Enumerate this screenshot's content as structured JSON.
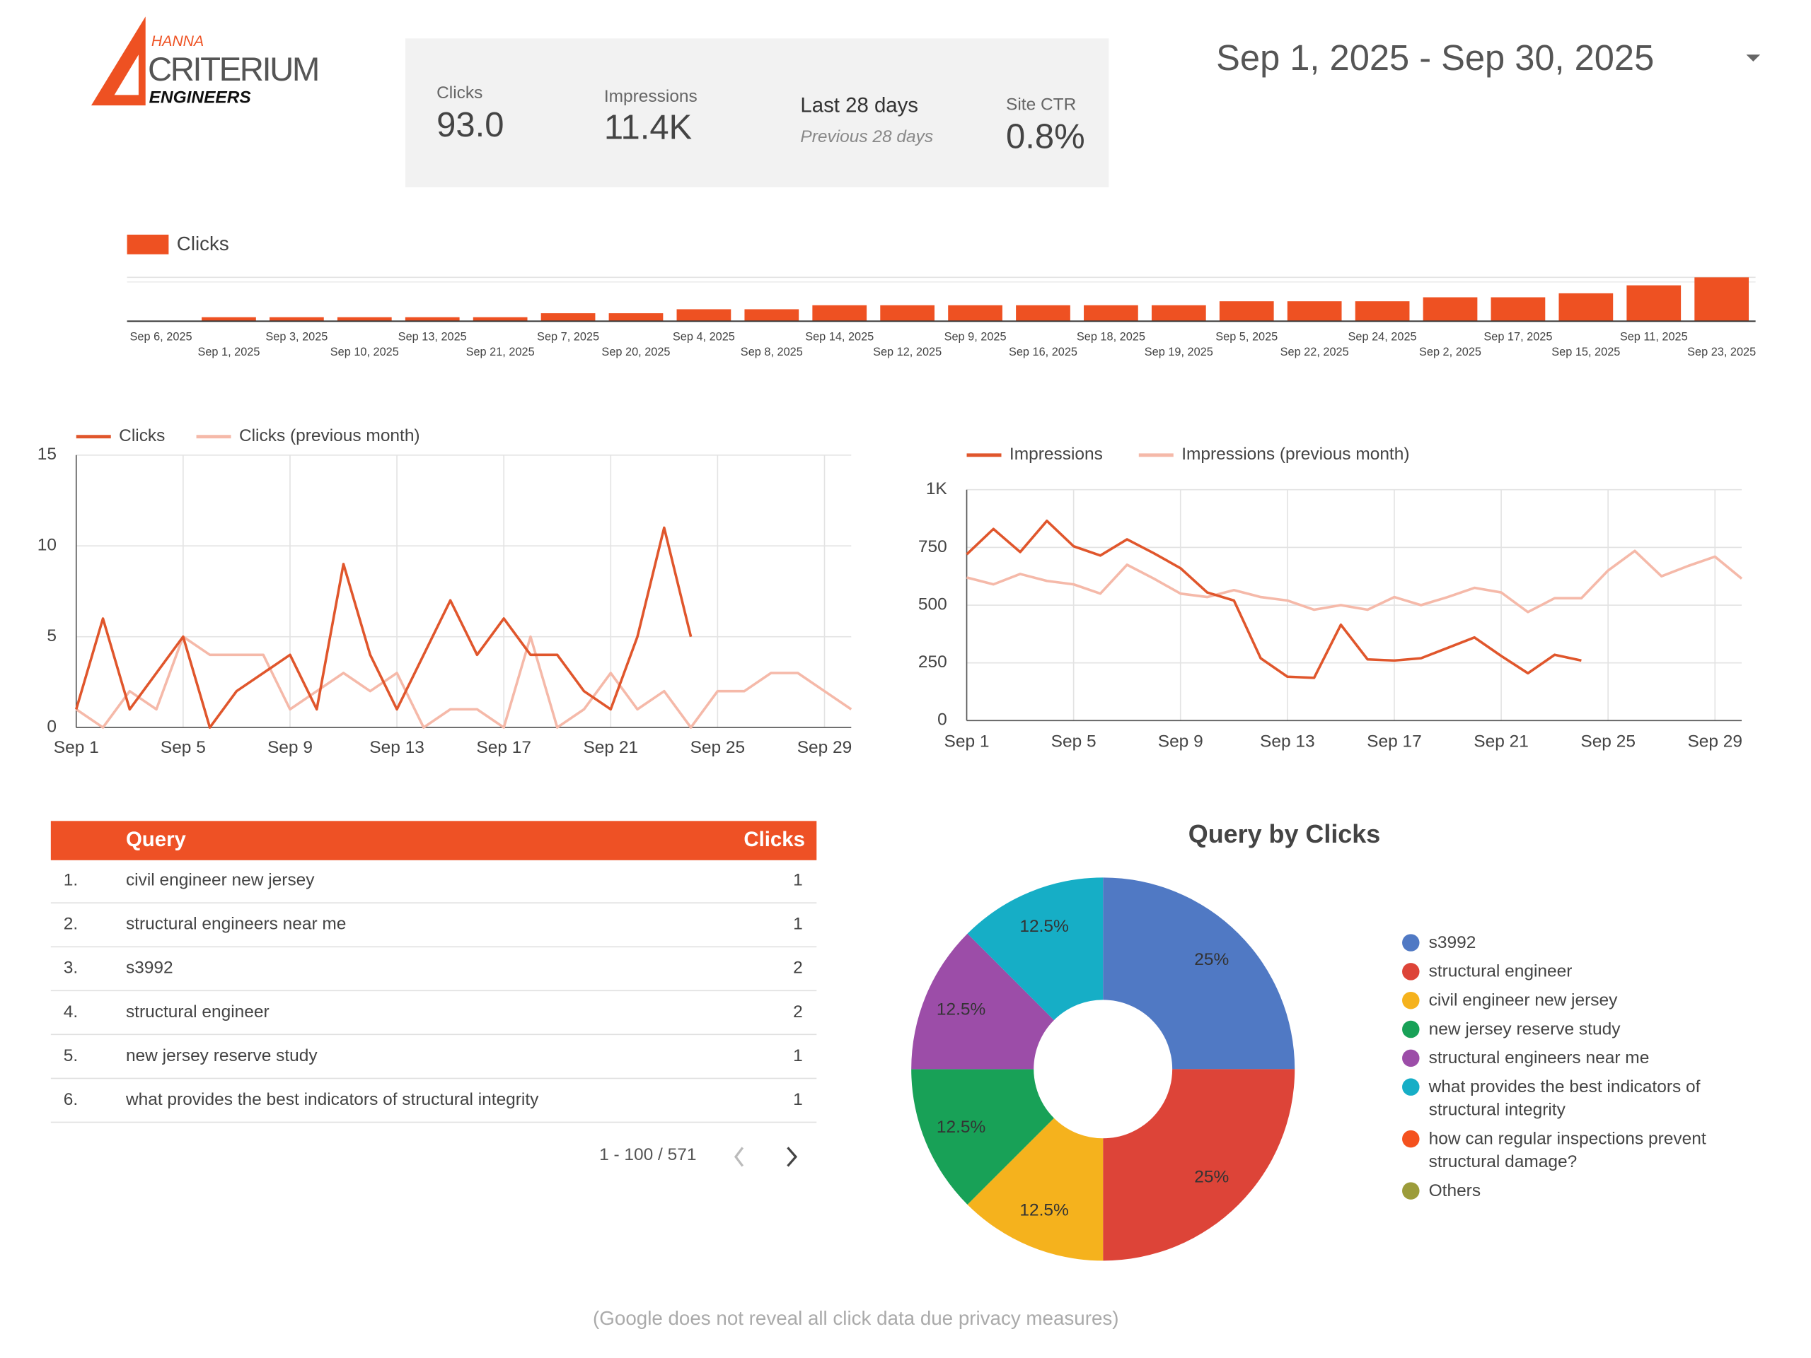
{
  "header": {
    "logo": {
      "top": "HANNA",
      "main": "CRITERIUM",
      "bottom": "ENGINEERS"
    },
    "date_range": "Sep 1, 2025 - Sep 30, 2025"
  },
  "scorecard": {
    "clicks": {
      "label": "Clicks",
      "value": "93.0"
    },
    "impressions": {
      "label": "Impressions",
      "value": "11.4K"
    },
    "period": "Last 28 days",
    "comparison": "Previous 28 days",
    "ctr": {
      "label": "Site CTR",
      "value": "0.8%"
    }
  },
  "chart_data": [
    {
      "type": "bar",
      "categories": [
        "Sep 6, 2025",
        "Sep 1, 2025",
        "Sep 3, 2025",
        "Sep 10, 2025",
        "Sep 13, 2025",
        "Sep 21, 2025",
        "Sep 7, 2025",
        "Sep 20, 2025",
        "Sep 4, 2025",
        "Sep 8, 2025",
        "Sep 14, 2025",
        "Sep 12, 2025",
        "Sep 9, 2025",
        "Sep 16, 2025",
        "Sep 18, 2025",
        "Sep 19, 2025",
        "Sep 5, 2025",
        "Sep 22, 2025",
        "Sep 24, 2025",
        "Sep 2, 2025",
        "Sep 17, 2025",
        "Sep 15, 2025",
        "Sep 11, 2025",
        "Sep 23, 2025"
      ],
      "series": [
        {
          "name": "Clicks",
          "color": "#ee5122",
          "values": [
            0,
            1,
            1,
            1,
            1,
            1,
            2,
            2,
            3,
            3,
            4,
            4,
            4,
            4,
            4,
            4,
            5,
            5,
            5,
            6,
            6,
            7,
            9,
            11
          ]
        }
      ]
    },
    {
      "type": "line",
      "categories": [
        "Sep 1",
        null,
        null,
        null,
        "Sep 5",
        null,
        null,
        null,
        "Sep 9",
        null,
        null,
        null,
        "Sep 13",
        null,
        null,
        null,
        "Sep 17",
        null,
        null,
        null,
        "Sep 21",
        null,
        null,
        null,
        "Sep 25",
        null,
        null,
        null,
        "Sep 29",
        null
      ],
      "series": [
        {
          "name": "Clicks",
          "color": "#e0562c",
          "values": [
            1,
            6,
            1,
            3,
            5,
            0,
            2,
            3,
            4,
            1,
            9,
            4,
            1,
            4,
            7,
            4,
            6,
            4,
            4,
            2,
            1,
            5,
            11,
            5,
            null,
            null,
            null,
            null,
            null,
            null
          ]
        },
        {
          "name": "Clicks (previous month)",
          "color": "#f5b9a9",
          "values": [
            1,
            0,
            2,
            1,
            5,
            4,
            4,
            4,
            1,
            2,
            3,
            2,
            3,
            0,
            1,
            1,
            0,
            5,
            0,
            1,
            3,
            1,
            2,
            0,
            2,
            2,
            3,
            3,
            2,
            1
          ]
        }
      ],
      "ylim": [
        0,
        15
      ],
      "yticks": [
        0,
        5,
        10,
        15
      ],
      "grid": true
    },
    {
      "type": "line",
      "categories": [
        "Sep 1",
        null,
        null,
        null,
        "Sep 5",
        null,
        null,
        null,
        "Sep 9",
        null,
        null,
        null,
        "Sep 13",
        null,
        null,
        null,
        "Sep 17",
        null,
        null,
        null,
        "Sep 21",
        null,
        null,
        null,
        "Sep 25",
        null,
        null,
        null,
        "Sep 29",
        null
      ],
      "series": [
        {
          "name": "Impressions",
          "color": "#e0562c",
          "values": [
            720,
            830,
            730,
            865,
            755,
            715,
            785,
            725,
            660,
            555,
            520,
            270,
            190,
            185,
            415,
            265,
            260,
            270,
            315,
            360,
            280,
            205,
            285,
            260,
            null,
            null,
            null,
            null,
            null,
            null
          ]
        },
        {
          "name": "Impressions (previous month)",
          "color": "#f5b9a9",
          "values": [
            620,
            590,
            635,
            605,
            590,
            550,
            675,
            615,
            550,
            535,
            565,
            535,
            520,
            480,
            500,
            480,
            535,
            500,
            535,
            575,
            555,
            470,
            530,
            530,
            650,
            735,
            625,
            670,
            710,
            615
          ]
        }
      ],
      "ylim": [
        0,
        1000
      ],
      "yticks": [
        0,
        250,
        500,
        750,
        {
          "value": 1000,
          "label": "1K"
        }
      ],
      "grid": true
    },
    {
      "type": "pie",
      "title": "Query by Clicks",
      "categories": [
        "s3992",
        "structural engineer",
        "civil engineer new jersey",
        "new jersey reserve study",
        "structural engineers near me",
        "what provides the best indicators of structural integrity",
        "how can regular inspections prevent structural damage?",
        "Others"
      ],
      "values": [
        25,
        25,
        12.5,
        12.5,
        12.5,
        12.5,
        0,
        0
      ],
      "value_labels": [
        "25%",
        "25%",
        "12.5%",
        "12.5%",
        "12.5%",
        "12.5%",
        null,
        null
      ],
      "colors": [
        "#5079c4",
        "#dd4438",
        "#f5b21d",
        "#18a157",
        "#9c4da8",
        "#16aec6",
        "#f4511e",
        "#9c9c3a"
      ]
    }
  ],
  "table": {
    "columns": [
      "Query",
      "Clicks"
    ],
    "rows": [
      [
        "1.",
        "civil engineer new jersey",
        1
      ],
      [
        "2.",
        "structural engineers near me",
        1
      ],
      [
        "3.",
        "s3992",
        2
      ],
      [
        "4.",
        "structural engineer",
        2
      ],
      [
        "5.",
        "new jersey reserve study",
        1
      ],
      [
        "6.",
        "what provides the best indicators of structural integrity",
        1
      ]
    ],
    "pagination": "1 - 100 / 571"
  },
  "footer": "(Google does not reveal all click data due privacy measures)"
}
